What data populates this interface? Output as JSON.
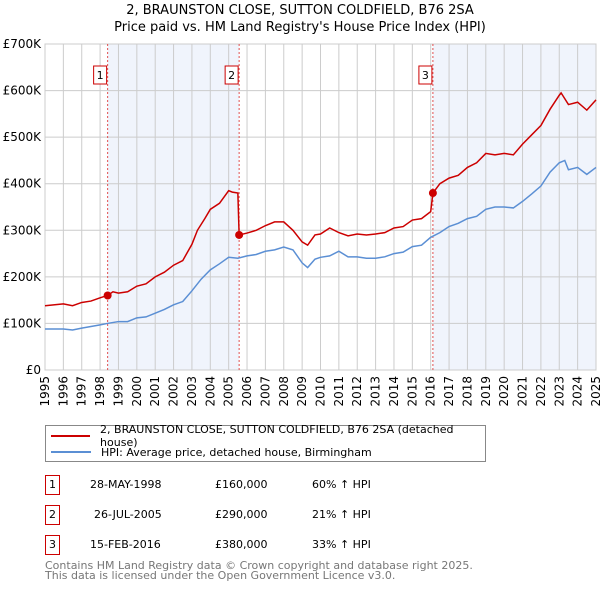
{
  "chart_data": {
    "type": "line",
    "title": "2, BRAUNSTON CLOSE, SUTTON COLDFIELD, B76 2SA",
    "subtitle": "Price paid vs. HM Land Registry's House Price Index (HPI)",
    "xlim": [
      1995,
      2025
    ],
    "ylim": [
      0,
      700000
    ],
    "yticks": [
      0,
      100000,
      200000,
      300000,
      400000,
      500000,
      600000,
      700000
    ],
    "ytick_labels": [
      "£0",
      "£100K",
      "£200K",
      "£300K",
      "£400K",
      "£500K",
      "£600K",
      "£700K"
    ],
    "xticks": [
      "1995",
      "1996",
      "1997",
      "1998",
      "1999",
      "2000",
      "2001",
      "2002",
      "2003",
      "2004",
      "2005",
      "2006",
      "2007",
      "2008",
      "2009",
      "2010",
      "2011",
      "2012",
      "2013",
      "2014",
      "2015",
      "2016",
      "2017",
      "2018",
      "2019",
      "2020",
      "2021",
      "2022",
      "2023",
      "2024",
      "2025"
    ],
    "grid": true,
    "series": [
      {
        "name": "2, BRAUNSTON CLOSE, SUTTON COLDFIELD, B76 2SA (detached house)",
        "color": "#cc0000",
        "points": [
          [
            1995,
            138
          ],
          [
            1996,
            142
          ],
          [
            1996.5,
            138
          ],
          [
            1997,
            145
          ],
          [
            1997.5,
            148
          ],
          [
            1998,
            155
          ],
          [
            1998.4,
            160
          ],
          [
            1998.7,
            168
          ],
          [
            1999,
            165
          ],
          [
            1999.5,
            168
          ],
          [
            2000,
            180
          ],
          [
            2000.5,
            185
          ],
          [
            2001,
            200
          ],
          [
            2001.5,
            210
          ],
          [
            2002,
            225
          ],
          [
            2002.5,
            235
          ],
          [
            2003,
            270
          ],
          [
            2003.3,
            300
          ],
          [
            2003.7,
            325
          ],
          [
            2004,
            345
          ],
          [
            2004.5,
            358
          ],
          [
            2005,
            385
          ],
          [
            2005.2,
            382
          ],
          [
            2005.5,
            380
          ],
          [
            2005.57,
            290
          ],
          [
            2006,
            294
          ],
          [
            2006.5,
            300
          ],
          [
            2007,
            310
          ],
          [
            2007.5,
            318
          ],
          [
            2008,
            318
          ],
          [
            2008.5,
            300
          ],
          [
            2009,
            275
          ],
          [
            2009.3,
            268
          ],
          [
            2009.7,
            290
          ],
          [
            2010,
            292
          ],
          [
            2010.5,
            305
          ],
          [
            2011,
            295
          ],
          [
            2011.5,
            288
          ],
          [
            2012,
            292
          ],
          [
            2012.5,
            290
          ],
          [
            2013,
            292
          ],
          [
            2013.5,
            295
          ],
          [
            2014,
            305
          ],
          [
            2014.5,
            308
          ],
          [
            2015,
            322
          ],
          [
            2015.5,
            325
          ],
          [
            2016,
            340
          ],
          [
            2016.12,
            380
          ],
          [
            2016.5,
            400
          ],
          [
            2017,
            412
          ],
          [
            2017.5,
            418
          ],
          [
            2018,
            435
          ],
          [
            2018.5,
            445
          ],
          [
            2019,
            465
          ],
          [
            2019.5,
            462
          ],
          [
            2020,
            465
          ],
          [
            2020.5,
            462
          ],
          [
            2021,
            485
          ],
          [
            2021.5,
            505
          ],
          [
            2022,
            525
          ],
          [
            2022.5,
            560
          ],
          [
            2023,
            590
          ],
          [
            2023.1,
            595
          ],
          [
            2023.5,
            570
          ],
          [
            2024,
            575
          ],
          [
            2024.5,
            558
          ],
          [
            2025,
            580
          ]
        ]
      },
      {
        "name": "HPI: Average price, detached house, Birmingham",
        "color": "#5b8fd4",
        "points": [
          [
            1995,
            88
          ],
          [
            1996,
            88
          ],
          [
            1996.5,
            86
          ],
          [
            1997,
            90
          ],
          [
            1998,
            97
          ],
          [
            1998.4,
            100
          ],
          [
            1999,
            104
          ],
          [
            1999.5,
            104
          ],
          [
            2000,
            112
          ],
          [
            2000.5,
            114
          ],
          [
            2001,
            122
          ],
          [
            2001.5,
            130
          ],
          [
            2002,
            140
          ],
          [
            2002.5,
            147
          ],
          [
            2003,
            170
          ],
          [
            2003.5,
            195
          ],
          [
            2004,
            215
          ],
          [
            2004.5,
            228
          ],
          [
            2005,
            242
          ],
          [
            2005.5,
            240
          ],
          [
            2006,
            245
          ],
          [
            2006.5,
            248
          ],
          [
            2007,
            255
          ],
          [
            2007.5,
            258
          ],
          [
            2008,
            264
          ],
          [
            2008.5,
            258
          ],
          [
            2009,
            230
          ],
          [
            2009.3,
            220
          ],
          [
            2009.7,
            238
          ],
          [
            2010,
            242
          ],
          [
            2010.5,
            245
          ],
          [
            2011,
            255
          ],
          [
            2011.5,
            243
          ],
          [
            2012,
            243
          ],
          [
            2012.5,
            240
          ],
          [
            2013,
            240
          ],
          [
            2013.5,
            243
          ],
          [
            2014,
            250
          ],
          [
            2014.5,
            253
          ],
          [
            2015,
            265
          ],
          [
            2015.5,
            268
          ],
          [
            2016,
            285
          ],
          [
            2016.5,
            295
          ],
          [
            2017,
            308
          ],
          [
            2017.5,
            315
          ],
          [
            2018,
            325
          ],
          [
            2018.5,
            330
          ],
          [
            2019,
            345
          ],
          [
            2019.5,
            350
          ],
          [
            2020,
            350
          ],
          [
            2020.5,
            348
          ],
          [
            2021,
            362
          ],
          [
            2021.5,
            378
          ],
          [
            2022,
            395
          ],
          [
            2022.5,
            425
          ],
          [
            2023,
            445
          ],
          [
            2023.3,
            450
          ],
          [
            2023.5,
            430
          ],
          [
            2024,
            435
          ],
          [
            2024.5,
            420
          ],
          [
            2025,
            435
          ]
        ]
      }
    ],
    "sales": [
      {
        "id": "1",
        "x": 1998.41,
        "value": 160000,
        "date": "28-MAY-1998",
        "price": "£160,000",
        "hpi": "60% ↑ HPI"
      },
      {
        "id": "2",
        "x": 2005.57,
        "value": 290000,
        "date": "26-JUL-2005",
        "price": "£290,000",
        "hpi": "21% ↑ HPI"
      },
      {
        "id": "3",
        "x": 2016.12,
        "value": 380000,
        "date": "15-FEB-2016",
        "price": "£380,000",
        "hpi": "33% ↑ HPI"
      }
    ]
  },
  "footer": {
    "line1": "Contains HM Land Registry data © Crown copyright and database right 2025.",
    "line2": "This data is licensed under the Open Government Licence v3.0."
  }
}
